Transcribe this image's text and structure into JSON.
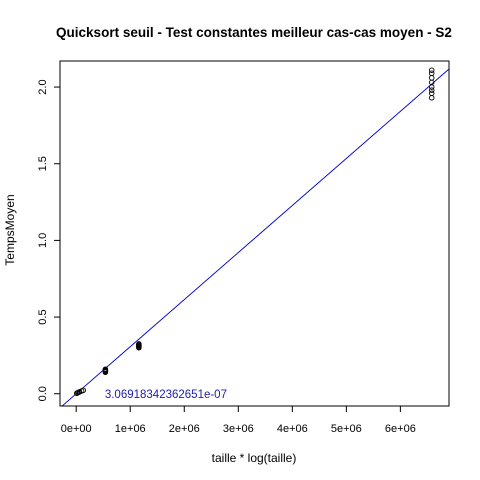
{
  "chart_data": {
    "type": "scatter",
    "title": "Quicksort  seuil - Test constantes meilleur cas-cas moyen - S2",
    "xlabel": "taille * log(taille)",
    "ylabel": "TempsMoyen",
    "xlim": [
      -300000,
      6900000
    ],
    "ylim": [
      -0.08,
      2.17
    ],
    "x_ticks": [
      0,
      1000000,
      2000000,
      3000000,
      4000000,
      5000000,
      6000000
    ],
    "x_tick_labels": [
      "0e+00",
      "1e+06",
      "2e+06",
      "3e+06",
      "4e+06",
      "5e+06",
      "6e+06"
    ],
    "y_ticks": [
      0.0,
      0.5,
      1.0,
      1.5,
      2.0
    ],
    "y_tick_labels": [
      "0.0",
      "0.5",
      "1.0",
      "1.5",
      "2.0"
    ],
    "grid": false,
    "points": [
      {
        "x": 10000,
        "y": 0.003
      },
      {
        "x": 30000,
        "y": 0.007
      },
      {
        "x": 60000,
        "y": 0.012
      },
      {
        "x": 100000,
        "y": 0.018
      },
      {
        "x": 130000,
        "y": 0.022
      },
      {
        "x": 50000,
        "y": 0.01
      },
      {
        "x": 540000,
        "y": 0.145
      },
      {
        "x": 540000,
        "y": 0.15
      },
      {
        "x": 540000,
        "y": 0.155
      },
      {
        "x": 540000,
        "y": 0.16
      },
      {
        "x": 540000,
        "y": 0.14
      },
      {
        "x": 540000,
        "y": 0.152
      },
      {
        "x": 1160000,
        "y": 0.305
      },
      {
        "x": 1160000,
        "y": 0.31
      },
      {
        "x": 1160000,
        "y": 0.315
      },
      {
        "x": 1160000,
        "y": 0.32
      },
      {
        "x": 1160000,
        "y": 0.325
      },
      {
        "x": 1160000,
        "y": 0.3
      },
      {
        "x": 6580000,
        "y": 1.93
      },
      {
        "x": 6580000,
        "y": 1.96
      },
      {
        "x": 6580000,
        "y": 1.98
      },
      {
        "x": 6580000,
        "y": 2.0
      },
      {
        "x": 6580000,
        "y": 2.03
      },
      {
        "x": 6580000,
        "y": 2.06
      },
      {
        "x": 6580000,
        "y": 2.09
      },
      {
        "x": 6580000,
        "y": 2.11
      }
    ],
    "fit_line": {
      "slope": 3.06918342362651e-07,
      "intercept": 0.0,
      "color": "#0000cc"
    },
    "annotation": {
      "text": "3.06918342362651e-07",
      "x": 530000,
      "y": 0.0,
      "color": "#2020b0"
    },
    "colors": {
      "points": "#000000",
      "line": "#0000cc",
      "axes": "#000000"
    }
  }
}
